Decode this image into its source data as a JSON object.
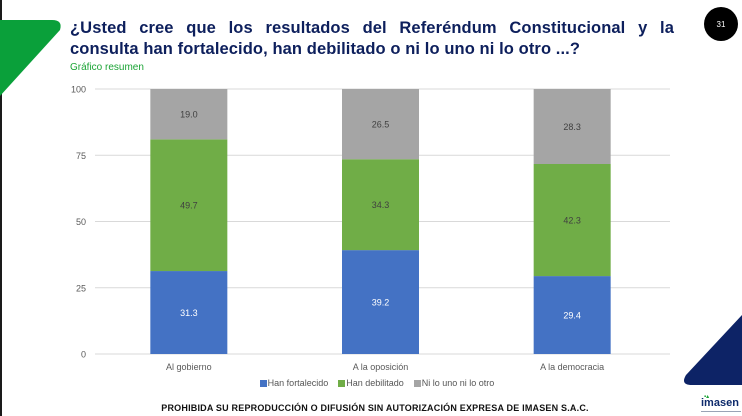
{
  "header": {
    "title": "¿Usted cree que los resultados del Referéndum Constitucional y la consulta han fortalecido, han debilitado o ni lo uno ni lo otro ...?",
    "subtitle": "Gráfico resumen",
    "page_number": "31"
  },
  "colors": {
    "accent_green": "#0aa03a",
    "brand_navy": "#0d2366",
    "title_navy": "#0d1f5c"
  },
  "chart_data": {
    "type": "bar",
    "stacked": true,
    "title": "",
    "xlabel": "",
    "ylabel": "",
    "ylim": [
      0,
      100
    ],
    "yticks": [
      0,
      25,
      50,
      75,
      100
    ],
    "grid": true,
    "legend_position": "bottom",
    "categories": [
      "Al gobierno",
      "A la oposición",
      "A la democracia"
    ],
    "series": [
      {
        "name": "Han fortalecido",
        "color": "#4472c4",
        "label_color": "#ffffff",
        "values": [
          31.3,
          39.2,
          29.4
        ]
      },
      {
        "name": "Han debilitado",
        "color": "#70ad47",
        "label_color": "#404040",
        "values": [
          49.7,
          34.3,
          42.3
        ]
      },
      {
        "name": "Ni lo uno ni lo otro",
        "color": "#a5a5a5",
        "label_color": "#404040",
        "values": [
          19.0,
          26.5,
          28.3
        ]
      }
    ]
  },
  "footer": {
    "disclaimer": "PROHIBIDA SU REPRODUCCIÓN O DIFUSIÓN SIN AUTORIZACIÓN EXPRESA DE IMASEN S.A.C."
  },
  "logo": {
    "text": "imasen"
  }
}
